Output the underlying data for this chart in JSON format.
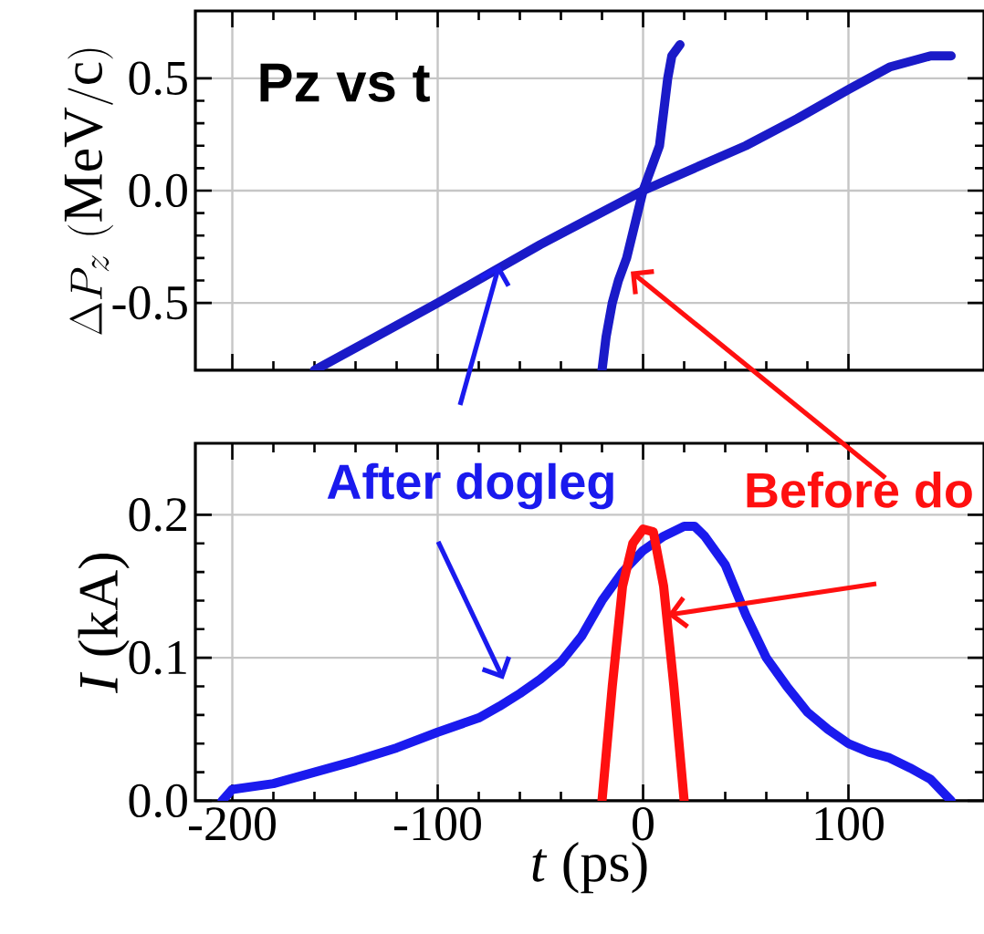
{
  "chart_data": [
    {
      "type": "line",
      "ylabel": "\\Delta P_{z}\\ (\\mathrm{MeV/c})",
      "annotations": [
        "Pz vs t"
      ],
      "xlim": [
        -218,
        166
      ],
      "ylim": [
        -0.8,
        0.8
      ],
      "xticks": [
        -200,
        -100,
        0,
        100
      ],
      "yticks": [
        -0.5,
        {
          "value": 0,
          "label": "0.0"
        },
        0.5
      ],
      "tick_labels": "y",
      "grid": true,
      "series": [
        {
          "color": "#1a1ac8",
          "x": [
            -160,
            -130,
            -100,
            -75,
            -50,
            -25,
            0,
            25,
            50,
            75,
            100,
            120,
            140,
            150
          ],
          "values": [
            -0.8,
            -0.65,
            -0.5,
            -0.37,
            -0.24,
            -0.12,
            0.0,
            0.1,
            0.2,
            0.32,
            0.45,
            0.55,
            0.6,
            0.6
          ]
        },
        {
          "color": "#1a1ac8",
          "x": [
            -20,
            -18,
            -15,
            -12,
            -8,
            -4,
            0,
            4,
            8,
            10,
            12,
            14,
            18
          ],
          "values": [
            -0.8,
            -0.65,
            -0.5,
            -0.4,
            -0.3,
            -0.15,
            0.0,
            0.1,
            0.2,
            0.35,
            0.5,
            0.6,
            0.65
          ]
        }
      ]
    },
    {
      "type": "line",
      "xlabel": "*t* (ps)",
      "ylabel": "*I* (kA)",
      "xlim": [
        -218,
        166
      ],
      "ylim": [
        0,
        0.25
      ],
      "xticks": [
        -200,
        -100,
        0,
        100
      ],
      "yticks": [
        {
          "value": 0,
          "label": "0.0"
        },
        0.1,
        0.2
      ],
      "grid": true,
      "series": [
        {
          "name": "After dogleg",
          "color": "#1a1aee",
          "x": [
            -205,
            -200,
            -180,
            -160,
            -140,
            -120,
            -100,
            -80,
            -70,
            -60,
            -50,
            -40,
            -30,
            -20,
            -10,
            0,
            10,
            20,
            25,
            30,
            40,
            50,
            60,
            70,
            80,
            90,
            100,
            110,
            120,
            130,
            140,
            150
          ],
          "values": [
            0,
            0.008,
            0.012,
            0.02,
            0.028,
            0.037,
            0.048,
            0.058,
            0.066,
            0.075,
            0.085,
            0.097,
            0.115,
            0.14,
            0.16,
            0.175,
            0.185,
            0.192,
            0.192,
            0.185,
            0.165,
            0.13,
            0.1,
            0.08,
            0.062,
            0.05,
            0.04,
            0.034,
            0.03,
            0.023,
            0.015,
            0
          ]
        },
        {
          "name": "Before do",
          "color": "#ff1010",
          "x": [
            -20,
            -15,
            -10,
            -5,
            0,
            5,
            10,
            15,
            20
          ],
          "values": [
            0,
            0.08,
            0.15,
            0.18,
            0.19,
            0.188,
            0.15,
            0.08,
            0
          ]
        }
      ]
    }
  ]
}
